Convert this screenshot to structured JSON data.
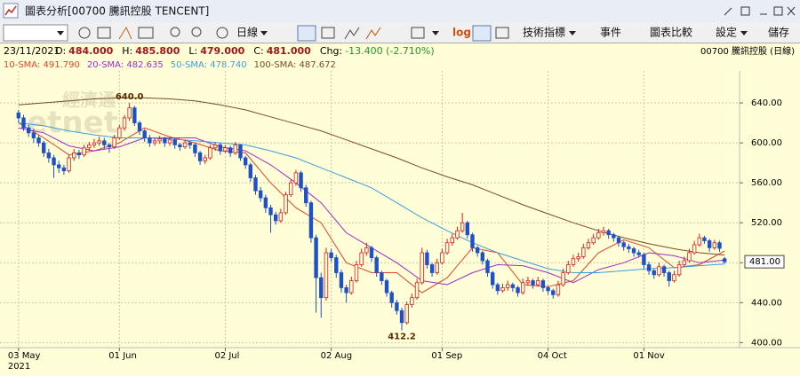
{
  "window": {
    "title": "圖表分析[00700 騰訊控股 TENCENT]"
  },
  "toolbar": {
    "period": "日線",
    "log": "log",
    "indicators": "技術指標",
    "events": "事件",
    "compare": "圖表比較",
    "settings": "設定",
    "save": "儲存"
  },
  "info": {
    "date": "23/11/2021",
    "items": [
      {
        "label": "O:",
        "value": "484.000"
      },
      {
        "label": "H:",
        "value": "485.800"
      },
      {
        "label": "L:",
        "value": "479.000"
      },
      {
        "label": "C:",
        "value": "481.000"
      }
    ],
    "change": {
      "label": "Chg:",
      "value": "-13.400 (-2.710%)"
    },
    "symbol": "00700 騰訊控股 (日線)"
  },
  "watermark": {
    "cn": "經濟通",
    "en": "etnet"
  },
  "chart_data": {
    "type": "candlestick",
    "up_color": "#d81e1e",
    "down_color": "#1e50c8",
    "grid": true,
    "ylim": [
      395,
      672
    ],
    "yticks": [
      {
        "value": 400,
        "label": "400.00"
      },
      {
        "value": 440,
        "label": "440.00"
      },
      {
        "value": 480,
        "label": "480.00"
      },
      {
        "value": 520,
        "label": "520.00"
      },
      {
        "value": 560,
        "label": "560.00"
      },
      {
        "value": 600,
        "label": "600.00"
      },
      {
        "value": 640,
        "label": "640.00"
      }
    ],
    "last_price": {
      "value": 481,
      "label": "481.00"
    },
    "x_sublabel": "2021",
    "annotations": [
      {
        "value": 640,
        "label": "640.0"
      },
      {
        "value": 412.2,
        "label": "412.2"
      }
    ],
    "categories": [
      "03 May",
      null,
      null,
      null,
      null,
      null,
      null,
      null,
      null,
      null,
      null,
      null,
      null,
      null,
      null,
      null,
      null,
      null,
      null,
      null,
      "01 Jun",
      null,
      null,
      null,
      null,
      null,
      null,
      null,
      null,
      null,
      null,
      null,
      null,
      null,
      null,
      null,
      null,
      null,
      null,
      null,
      null,
      "02 Jul",
      null,
      null,
      null,
      null,
      null,
      null,
      null,
      null,
      null,
      null,
      null,
      null,
      null,
      null,
      null,
      null,
      null,
      null,
      null,
      null,
      "02 Aug",
      null,
      null,
      null,
      null,
      null,
      null,
      null,
      null,
      null,
      null,
      null,
      null,
      null,
      null,
      null,
      null,
      null,
      null,
      null,
      null,
      null,
      "01 Sep",
      null,
      null,
      null,
      null,
      null,
      null,
      null,
      null,
      null,
      null,
      null,
      null,
      null,
      null,
      null,
      null,
      null,
      null,
      null,
      null,
      "04 Oct",
      null,
      null,
      null,
      null,
      null,
      null,
      null,
      null,
      null,
      null,
      null,
      null,
      null,
      null,
      null,
      null,
      null,
      null,
      "01 Nov",
      null,
      null,
      null,
      null,
      null,
      null,
      null,
      null,
      null,
      null,
      null,
      null,
      null,
      null,
      null,
      null
    ],
    "ohlc": [
      [
        630,
        633,
        620,
        625
      ],
      [
        625,
        628,
        612,
        615
      ],
      [
        615,
        618,
        606,
        610
      ],
      [
        610,
        614,
        600,
        605
      ],
      [
        605,
        608,
        596,
        600
      ],
      [
        600,
        602,
        586,
        590
      ],
      [
        590,
        594,
        580,
        585
      ],
      [
        585,
        588,
        565,
        578
      ],
      [
        578,
        582,
        570,
        575
      ],
      [
        575,
        578,
        568,
        572
      ],
      [
        572,
        588,
        570,
        585
      ],
      [
        585,
        594,
        582,
        590
      ],
      [
        590,
        593,
        584,
        588
      ],
      [
        588,
        598,
        586,
        595
      ],
      [
        595,
        601,
        592,
        598
      ],
      [
        598,
        604,
        595,
        600
      ],
      [
        600,
        606,
        597,
        602
      ],
      [
        602,
        605,
        594,
        598
      ],
      [
        598,
        600,
        590,
        596
      ],
      [
        596,
        608,
        594,
        605
      ],
      [
        605,
        618,
        603,
        615
      ],
      [
        615,
        628,
        612,
        625
      ],
      [
        625,
        640,
        622,
        635
      ],
      [
        635,
        637,
        617,
        620
      ],
      [
        620,
        622,
        608,
        612
      ],
      [
        612,
        614,
        601,
        605
      ],
      [
        605,
        608,
        596,
        600
      ],
      [
        600,
        605,
        597,
        602
      ],
      [
        602,
        607,
        599,
        604
      ],
      [
        604,
        606,
        596,
        600
      ],
      [
        600,
        606,
        597,
        603
      ],
      [
        603,
        605,
        594,
        598
      ],
      [
        598,
        600,
        592,
        596
      ],
      [
        596,
        603,
        594,
        600
      ],
      [
        600,
        602,
        594,
        598
      ],
      [
        598,
        600,
        586,
        590
      ],
      [
        590,
        592,
        578,
        582
      ],
      [
        582,
        588,
        579,
        585
      ],
      [
        585,
        598,
        583,
        595
      ],
      [
        595,
        601,
        592,
        598
      ],
      [
        598,
        600,
        588,
        592
      ],
      [
        592,
        598,
        590,
        595
      ],
      [
        595,
        597,
        586,
        590
      ],
      [
        590,
        601,
        588,
        598
      ],
      [
        598,
        599,
        582,
        585
      ],
      [
        585,
        587,
        574,
        578
      ],
      [
        578,
        580,
        561,
        565
      ],
      [
        565,
        568,
        548,
        552
      ],
      [
        552,
        556,
        541,
        545
      ],
      [
        545,
        548,
        530,
        535
      ],
      [
        535,
        538,
        510,
        528
      ],
      [
        528,
        531,
        518,
        522
      ],
      [
        522,
        534,
        520,
        530
      ],
      [
        530,
        551,
        528,
        548
      ],
      [
        548,
        563,
        546,
        560
      ],
      [
        560,
        573,
        557,
        570
      ],
      [
        570,
        572,
        551,
        555
      ],
      [
        555,
        558,
        536,
        540
      ],
      [
        540,
        542,
        500,
        505
      ],
      [
        505,
        508,
        430,
        465
      ],
      [
        465,
        470,
        425,
        445
      ],
      [
        445,
        495,
        442,
        490
      ],
      [
        490,
        494,
        481,
        485
      ],
      [
        485,
        488,
        465,
        470
      ],
      [
        470,
        473,
        450,
        455
      ],
      [
        455,
        458,
        440,
        450
      ],
      [
        450,
        466,
        448,
        462
      ],
      [
        462,
        482,
        460,
        478
      ],
      [
        478,
        494,
        476,
        490
      ],
      [
        490,
        500,
        487,
        495
      ],
      [
        495,
        497,
        481,
        485
      ],
      [
        485,
        487,
        466,
        470
      ],
      [
        470,
        472,
        458,
        462
      ],
      [
        462,
        464,
        446,
        450
      ],
      [
        450,
        452,
        435,
        440
      ],
      [
        440,
        443,
        428,
        432
      ],
      [
        432,
        435,
        412.2,
        420
      ],
      [
        420,
        441,
        418,
        438
      ],
      [
        438,
        449,
        435,
        445
      ],
      [
        445,
        464,
        443,
        460
      ],
      [
        460,
        495,
        458,
        490
      ],
      [
        490,
        493,
        474,
        478
      ],
      [
        478,
        480,
        466,
        470
      ],
      [
        470,
        484,
        468,
        480
      ],
      [
        480,
        494,
        478,
        490
      ],
      [
        490,
        504,
        488,
        500
      ],
      [
        500,
        509,
        497,
        505
      ],
      [
        505,
        516,
        503,
        512
      ],
      [
        512,
        530,
        510,
        520
      ],
      [
        520,
        522,
        504,
        508
      ],
      [
        508,
        510,
        491,
        495
      ],
      [
        495,
        497,
        486,
        490
      ],
      [
        490,
        492,
        478,
        482
      ],
      [
        482,
        484,
        466,
        470
      ],
      [
        470,
        472,
        454,
        458
      ],
      [
        458,
        460,
        448,
        452
      ],
      [
        452,
        459,
        450,
        455
      ],
      [
        455,
        462,
        452,
        458
      ],
      [
        458,
        460,
        451,
        455
      ],
      [
        455,
        457,
        446,
        450
      ],
      [
        450,
        464,
        448,
        460
      ],
      [
        460,
        466,
        457,
        462
      ],
      [
        462,
        464,
        454,
        458
      ],
      [
        458,
        466,
        456,
        462
      ],
      [
        462,
        464,
        451,
        455
      ],
      [
        455,
        457,
        448,
        452
      ],
      [
        452,
        454,
        444,
        448
      ],
      [
        448,
        462,
        446,
        458
      ],
      [
        458,
        474,
        456,
        470
      ],
      [
        470,
        482,
        468,
        478
      ],
      [
        478,
        488,
        476,
        484
      ],
      [
        484,
        490,
        481,
        486
      ],
      [
        486,
        499,
        484,
        495
      ],
      [
        495,
        504,
        493,
        500
      ],
      [
        500,
        509,
        498,
        505
      ],
      [
        505,
        514,
        503,
        510
      ],
      [
        510,
        516,
        507,
        512
      ],
      [
        512,
        514,
        504,
        508
      ],
      [
        508,
        510,
        501,
        505
      ],
      [
        505,
        507,
        496,
        500
      ],
      [
        500,
        502,
        492,
        496
      ],
      [
        496,
        499,
        490,
        494
      ],
      [
        494,
        496,
        486,
        490
      ],
      [
        490,
        493,
        485,
        488
      ],
      [
        488,
        490,
        474,
        478
      ],
      [
        478,
        481,
        468,
        472
      ],
      [
        472,
        474,
        464,
        468
      ],
      [
        468,
        480,
        466,
        476
      ],
      [
        476,
        478,
        466,
        470
      ],
      [
        470,
        472,
        456,
        462
      ],
      [
        462,
        472,
        460,
        468
      ],
      [
        468,
        482,
        466,
        478
      ],
      [
        478,
        486,
        476,
        482
      ],
      [
        482,
        494,
        480,
        490
      ],
      [
        490,
        502,
        488,
        498
      ],
      [
        498,
        509,
        496,
        505
      ],
      [
        505,
        507,
        499,
        502
      ],
      [
        502,
        504,
        491,
        495
      ],
      [
        495,
        503,
        493,
        500
      ],
      [
        500,
        502,
        491,
        494.4
      ],
      [
        484,
        485.8,
        479,
        481
      ]
    ],
    "series": [
      {
        "name": "10-SMA: 491.790",
        "color": "#e2452b",
        "x": [
          0,
          5,
          10,
          15,
          20,
          25,
          30,
          35,
          40,
          45,
          50,
          55,
          60,
          65,
          70,
          75,
          80,
          85,
          90,
          95,
          100,
          105,
          110,
          115,
          120,
          125,
          130,
          135,
          140
        ],
        "values": [
          620,
          605,
          588,
          592,
          600,
          615,
          606,
          600,
          592,
          590,
          560,
          535,
          520,
          480,
          470,
          470,
          450,
          465,
          495,
          490,
          458,
          456,
          462,
          490,
          503,
          495,
          475,
          478,
          491.79
        ]
      },
      {
        "name": "20-SMA: 482.635",
        "color": "#a02cc8",
        "x": [
          0,
          5,
          10,
          15,
          20,
          25,
          30,
          35,
          40,
          45,
          50,
          55,
          60,
          65,
          70,
          75,
          80,
          85,
          90,
          95,
          100,
          105,
          110,
          115,
          120,
          125,
          130,
          135,
          140
        ],
        "values": [
          615,
          610,
          597,
          592,
          596,
          605,
          605,
          605,
          596,
          592,
          578,
          560,
          540,
          510,
          495,
          480,
          462,
          458,
          470,
          478,
          477,
          470,
          460,
          473,
          480,
          490,
          487,
          480,
          482.635
        ]
      },
      {
        "name": "50-SMA: 478.740",
        "color": "#3c9ee0",
        "x": [
          0,
          5,
          10,
          15,
          20,
          25,
          30,
          35,
          40,
          45,
          50,
          55,
          60,
          65,
          70,
          75,
          80,
          85,
          90,
          95,
          100,
          105,
          110,
          115,
          120,
          125,
          130,
          135,
          140
        ],
        "values": [
          620,
          617,
          612,
          608,
          605,
          605,
          604,
          602,
          600,
          598,
          592,
          585,
          575,
          565,
          555,
          540,
          525,
          512,
          500,
          490,
          482,
          474,
          470,
          470,
          472,
          474,
          475,
          477,
          478.74
        ]
      },
      {
        "name": "100-SMA: 487.672",
        "color": "#7a4a26",
        "x": [
          0,
          5,
          10,
          15,
          20,
          25,
          30,
          35,
          40,
          45,
          50,
          55,
          60,
          65,
          70,
          75,
          80,
          85,
          90,
          95,
          100,
          105,
          110,
          115,
          120,
          125,
          130,
          135,
          140
        ],
        "values": [
          638,
          640,
          642,
          644,
          645,
          645,
          644,
          642,
          638,
          633,
          626,
          619,
          612,
          603,
          594,
          585,
          575,
          566,
          558,
          548,
          538,
          529,
          520,
          512,
          505,
          499,
          494,
          490,
          487.672
        ]
      }
    ]
  }
}
